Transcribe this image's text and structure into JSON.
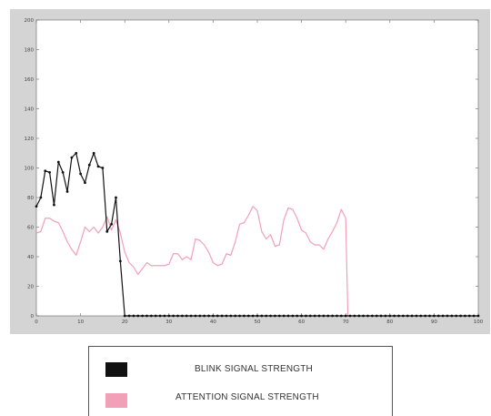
{
  "chart_data": {
    "type": "line",
    "title": "",
    "xlabel": "",
    "ylabel": "",
    "xlim": [
      0,
      100
    ],
    "ylim": [
      0,
      200
    ],
    "xticks": [
      0,
      10,
      20,
      30,
      40,
      50,
      60,
      70,
      80,
      90,
      100
    ],
    "yticks": [
      0,
      20,
      40,
      60,
      80,
      100,
      120,
      140,
      160,
      180,
      200
    ],
    "grid": false,
    "legend_position": "below",
    "series": [
      {
        "name": "BLINK SIGNAL STRENGTH",
        "color": "#111111",
        "markers": true,
        "points": [
          [
            0,
            74
          ],
          [
            1,
            80
          ],
          [
            2,
            98
          ],
          [
            3,
            97
          ],
          [
            4,
            75
          ],
          [
            5,
            104
          ],
          [
            6,
            97
          ],
          [
            7,
            84
          ],
          [
            8,
            107
          ],
          [
            9,
            110
          ],
          [
            10,
            96
          ],
          [
            11,
            90
          ],
          [
            12,
            102
          ],
          [
            13,
            110
          ],
          [
            14,
            101
          ],
          [
            15,
            100
          ],
          [
            16,
            57
          ],
          [
            17,
            62
          ],
          [
            18,
            80
          ],
          [
            19,
            37
          ],
          [
            20,
            0
          ],
          [
            21,
            0
          ],
          [
            22,
            0
          ],
          [
            23,
            0
          ],
          [
            24,
            0
          ],
          [
            25,
            0
          ],
          [
            26,
            0
          ],
          [
            27,
            0
          ],
          [
            28,
            0
          ],
          [
            29,
            0
          ],
          [
            30,
            0
          ],
          [
            31,
            0
          ],
          [
            32,
            0
          ],
          [
            33,
            0
          ],
          [
            34,
            0
          ],
          [
            35,
            0
          ],
          [
            36,
            0
          ],
          [
            37,
            0
          ],
          [
            38,
            0
          ],
          [
            39,
            0
          ],
          [
            40,
            0
          ],
          [
            41,
            0
          ],
          [
            42,
            0
          ],
          [
            43,
            0
          ],
          [
            44,
            0
          ],
          [
            45,
            0
          ],
          [
            46,
            0
          ],
          [
            47,
            0
          ],
          [
            48,
            0
          ],
          [
            49,
            0
          ],
          [
            50,
            0
          ],
          [
            51,
            0
          ],
          [
            52,
            0
          ],
          [
            53,
            0
          ],
          [
            54,
            0
          ],
          [
            55,
            0
          ],
          [
            56,
            0
          ],
          [
            57,
            0
          ],
          [
            58,
            0
          ],
          [
            59,
            0
          ],
          [
            60,
            0
          ],
          [
            61,
            0
          ],
          [
            62,
            0
          ],
          [
            63,
            0
          ],
          [
            64,
            0
          ],
          [
            65,
            0
          ],
          [
            66,
            0
          ],
          [
            67,
            0
          ],
          [
            68,
            0
          ],
          [
            69,
            0
          ],
          [
            70,
            0
          ],
          [
            71,
            0
          ],
          [
            72,
            0
          ],
          [
            73,
            0
          ],
          [
            74,
            0
          ],
          [
            75,
            0
          ],
          [
            76,
            0
          ],
          [
            77,
            0
          ],
          [
            78,
            0
          ],
          [
            79,
            0
          ],
          [
            80,
            0
          ],
          [
            81,
            0
          ],
          [
            82,
            0
          ],
          [
            83,
            0
          ],
          [
            84,
            0
          ],
          [
            85,
            0
          ],
          [
            86,
            0
          ],
          [
            87,
            0
          ],
          [
            88,
            0
          ],
          [
            89,
            0
          ],
          [
            90,
            0
          ],
          [
            91,
            0
          ],
          [
            92,
            0
          ],
          [
            93,
            0
          ],
          [
            94,
            0
          ],
          [
            95,
            0
          ],
          [
            96,
            0
          ],
          [
            97,
            0
          ],
          [
            98,
            0
          ],
          [
            99,
            0
          ],
          [
            100,
            0
          ]
        ]
      },
      {
        "name": "ATTENTION SIGNAL STRENGTH",
        "color": "#f2a0b8",
        "markers": false,
        "points": [
          [
            0,
            56
          ],
          [
            1,
            57
          ],
          [
            2,
            66
          ],
          [
            3,
            66
          ],
          [
            4,
            64
          ],
          [
            5,
            63
          ],
          [
            6,
            57
          ],
          [
            7,
            50
          ],
          [
            8,
            45
          ],
          [
            9,
            41
          ],
          [
            10,
            50
          ],
          [
            11,
            60
          ],
          [
            12,
            57
          ],
          [
            13,
            60
          ],
          [
            14,
            56
          ],
          [
            15,
            60
          ],
          [
            16,
            67
          ],
          [
            17,
            58
          ],
          [
            18,
            65
          ],
          [
            19,
            56
          ],
          [
            20,
            43
          ],
          [
            21,
            36
          ],
          [
            22,
            33
          ],
          [
            23,
            28
          ],
          [
            24,
            32
          ],
          [
            25,
            36
          ],
          [
            26,
            34
          ],
          [
            27,
            34
          ],
          [
            28,
            34
          ],
          [
            29,
            34
          ],
          [
            30,
            35
          ],
          [
            31,
            42
          ],
          [
            32,
            42
          ],
          [
            33,
            38
          ],
          [
            34,
            40
          ],
          [
            35,
            38
          ],
          [
            36,
            52
          ],
          [
            37,
            51
          ],
          [
            38,
            48
          ],
          [
            39,
            43
          ],
          [
            40,
            36
          ],
          [
            41,
            34
          ],
          [
            42,
            35
          ],
          [
            43,
            42
          ],
          [
            44,
            41
          ],
          [
            45,
            50
          ],
          [
            46,
            62
          ],
          [
            47,
            63
          ],
          [
            48,
            68
          ],
          [
            49,
            74
          ],
          [
            50,
            71
          ],
          [
            51,
            57
          ],
          [
            52,
            52
          ],
          [
            53,
            55
          ],
          [
            54,
            47
          ],
          [
            55,
            48
          ],
          [
            56,
            65
          ],
          [
            57,
            73
          ],
          [
            58,
            72
          ],
          [
            59,
            66
          ],
          [
            60,
            58
          ],
          [
            61,
            56
          ],
          [
            62,
            50
          ],
          [
            63,
            48
          ],
          [
            64,
            48
          ],
          [
            65,
            45
          ],
          [
            66,
            52
          ],
          [
            67,
            57
          ],
          [
            68,
            63
          ],
          [
            69,
            72
          ],
          [
            70,
            66
          ],
          [
            70.5,
            0
          ]
        ]
      }
    ]
  }
}
